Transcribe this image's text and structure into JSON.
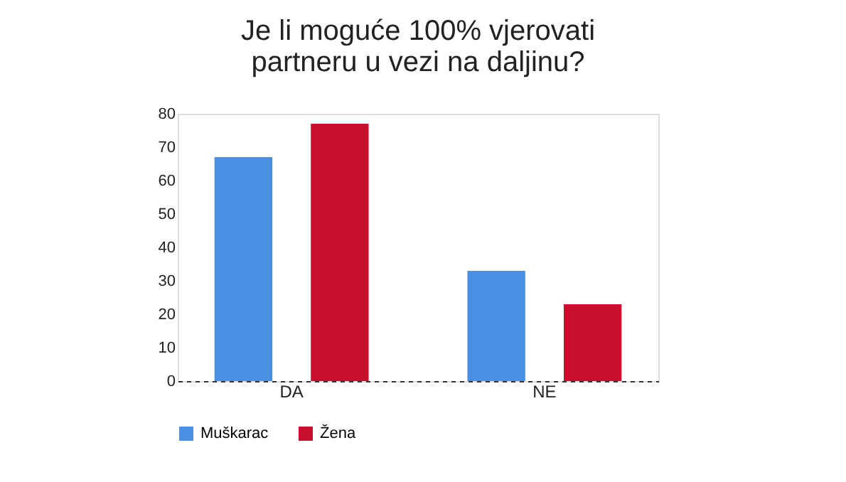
{
  "chart_data": {
    "type": "bar",
    "title": [
      "Je li moguće 100% vjerovati",
      "partneru u vezi na daljinu?"
    ],
    "categories": [
      "DA",
      "NE"
    ],
    "series": [
      {
        "name": "Muškarac",
        "color": "#4a8fe2",
        "values": [
          67,
          33
        ]
      },
      {
        "name": "Žena",
        "color": "#c8102e",
        "values": [
          77,
          23
        ]
      }
    ],
    "ylim": [
      0,
      80
    ],
    "yticks": [
      0,
      10,
      20,
      30,
      40,
      50,
      60,
      70,
      80
    ],
    "grid": false,
    "legend": "bottom"
  }
}
